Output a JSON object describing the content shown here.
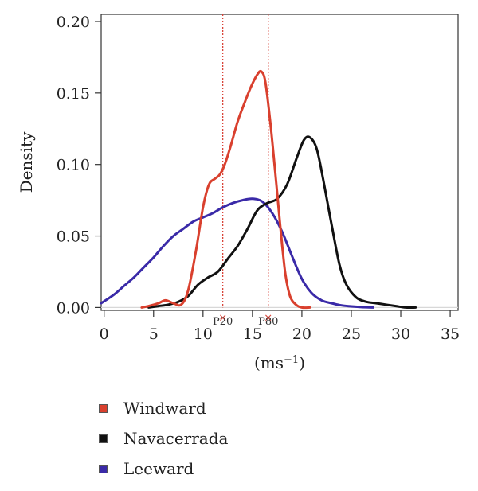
{
  "chart_data": {
    "type": "line",
    "title": "",
    "xlabel": "(ms",
    "xlabel_sup": "−1",
    "xlabel_close": ")",
    "ylabel": "Density",
    "xlim": [
      -0.3,
      35.8
    ],
    "ylim": [
      -0.002,
      0.205
    ],
    "x_ticks": [
      0,
      5,
      10,
      15,
      20,
      25,
      30,
      35
    ],
    "y_ticks": [
      0.0,
      0.05,
      0.1,
      0.15,
      0.2
    ],
    "y_tick_labels": [
      "0.00",
      "0.05",
      "0.10",
      "0.15",
      "0.20"
    ],
    "x_tick_labels": [
      "0",
      "5",
      "10",
      "15",
      "20",
      "25",
      "30",
      "35"
    ],
    "grid": false,
    "legend_position": "bottom",
    "percentile_lines": [
      {
        "label": "P20",
        "x": 12.0,
        "color": "#d9453a"
      },
      {
        "label": "P80",
        "x": 16.6,
        "color": "#d9453a"
      }
    ],
    "series": [
      {
        "name": "Windward",
        "color": "#d9402e",
        "x": [
          3.8,
          4.5,
          5.5,
          6.2,
          7.0,
          7.8,
          8.5,
          9.3,
          10.0,
          10.6,
          11.2,
          11.7,
          12.2,
          12.8,
          13.5,
          14.2,
          14.9,
          15.5,
          15.9,
          16.3,
          16.8,
          17.3,
          17.8,
          18.3,
          18.8,
          19.4,
          20.0,
          20.8
        ],
        "y": [
          0.0,
          0.001,
          0.003,
          0.005,
          0.003,
          0.002,
          0.012,
          0.04,
          0.07,
          0.086,
          0.09,
          0.093,
          0.1,
          0.113,
          0.13,
          0.143,
          0.155,
          0.163,
          0.165,
          0.158,
          0.13,
          0.095,
          0.058,
          0.025,
          0.008,
          0.002,
          0.0,
          0.0
        ]
      },
      {
        "name": "Navacerrada",
        "color": "#111111",
        "x": [
          4.5,
          5.5,
          6.5,
          7.5,
          8.5,
          9.5,
          10.5,
          11.5,
          12.5,
          13.5,
          14.5,
          15.5,
          16.5,
          17.5,
          18.5,
          19.5,
          20.2,
          20.8,
          21.5,
          22.2,
          23.0,
          23.8,
          24.5,
          25.5,
          26.5,
          27.5,
          28.5,
          29.5,
          30.5,
          31.5
        ],
        "y": [
          0.0,
          0.001,
          0.002,
          0.004,
          0.008,
          0.016,
          0.021,
          0.025,
          0.034,
          0.043,
          0.055,
          0.068,
          0.073,
          0.076,
          0.086,
          0.105,
          0.117,
          0.119,
          0.111,
          0.088,
          0.058,
          0.03,
          0.016,
          0.007,
          0.004,
          0.003,
          0.002,
          0.001,
          0.0,
          0.0
        ]
      },
      {
        "name": "Leeward",
        "color": "#3a2aa8",
        "x": [
          -0.3,
          1.0,
          2.0,
          3.0,
          4.0,
          5.0,
          6.0,
          7.0,
          8.0,
          9.0,
          10.0,
          11.0,
          12.0,
          13.0,
          14.0,
          15.0,
          16.0,
          17.0,
          18.0,
          19.0,
          20.0,
          21.0,
          22.0,
          23.0,
          24.0,
          25.0,
          26.0,
          27.2
        ],
        "y": [
          0.003,
          0.009,
          0.015,
          0.021,
          0.028,
          0.035,
          0.043,
          0.05,
          0.055,
          0.06,
          0.063,
          0.066,
          0.07,
          0.073,
          0.075,
          0.076,
          0.074,
          0.066,
          0.053,
          0.036,
          0.02,
          0.01,
          0.005,
          0.003,
          0.0015,
          0.0008,
          0.0003,
          0.0
        ]
      }
    ]
  }
}
